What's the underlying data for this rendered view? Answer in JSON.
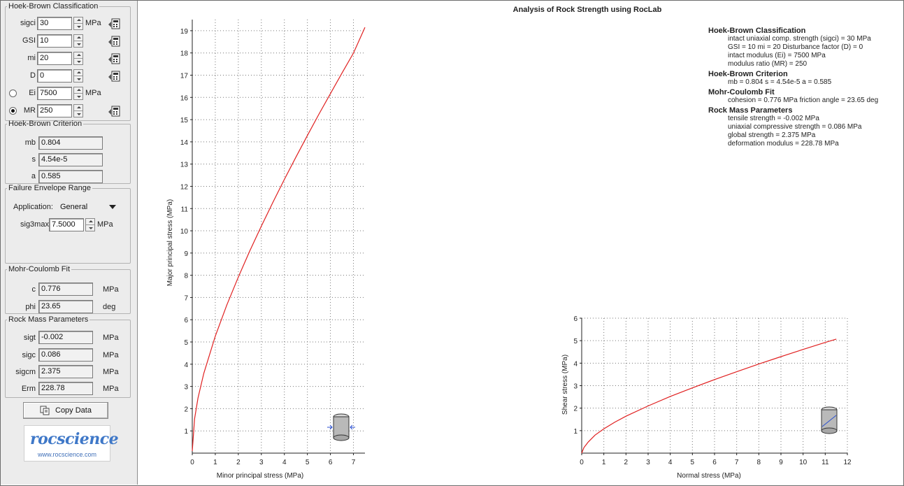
{
  "hb_classification": {
    "legend": "Hoek-Brown Classification",
    "sigci": {
      "label": "sigci",
      "value": "30",
      "unit": "MPa"
    },
    "gsi": {
      "label": "GSI",
      "value": "10"
    },
    "mi": {
      "label": "mi",
      "value": "20"
    },
    "d": {
      "label": "D",
      "value": "0"
    },
    "ei": {
      "label": "Ei",
      "value": "7500",
      "unit": "MPa",
      "selected": false
    },
    "mr": {
      "label": "MR",
      "value": "250",
      "selected": true
    }
  },
  "hb_criterion": {
    "legend": "Hoek-Brown Criterion",
    "mb": {
      "label": "mb",
      "value": "0.804"
    },
    "s": {
      "label": "s",
      "value": "4.54e-5"
    },
    "a": {
      "label": "a",
      "value": "0.585"
    }
  },
  "failure_envelope": {
    "legend": "Failure Envelope Range",
    "application_label": "Application:",
    "application_value": "General",
    "sig3max_label": "sig3max",
    "sig3max_value": "7.5000",
    "sig3max_unit": "MPa"
  },
  "mohr_coulomb": {
    "legend": "Mohr-Coulomb Fit",
    "c": {
      "label": "c",
      "value": "0.776",
      "unit": "MPa"
    },
    "phi": {
      "label": "phi",
      "value": "23.65",
      "unit": "deg"
    }
  },
  "rock_mass": {
    "legend": "Rock Mass Parameters",
    "sigt": {
      "label": "sigt",
      "value": "-0.002",
      "unit": "MPa"
    },
    "sigc": {
      "label": "sigc",
      "value": "0.086",
      "unit": "MPa"
    },
    "sigcm": {
      "label": "sigcm",
      "value": "2.375",
      "unit": "MPa"
    },
    "erm": {
      "label": "Erm",
      "value": "228.78",
      "unit": "MPa"
    }
  },
  "copy_button": "Copy Data",
  "logo": {
    "name": "rocscience",
    "url": "www.rocscience.com"
  },
  "report": {
    "title": "Analysis of Rock Strength using RocLab",
    "sections": [
      {
        "heading": "Hoek-Brown Classification",
        "lines": [
          "intact uniaxial comp. strength (sigci) = 30 MPa",
          "GSI = 10    mi = 20    Disturbance factor (D) = 0",
          "intact modulus (Ei) = 7500 MPa",
          "modulus ratio (MR) = 250"
        ]
      },
      {
        "heading": "Hoek-Brown Criterion",
        "lines": [
          "mb = 0.804    s = 4.54e-5    a = 0.585"
        ]
      },
      {
        "heading": "Mohr-Coulomb Fit",
        "lines": [
          "cohesion = 0.776 MPa    friction angle = 23.65 deg"
        ]
      },
      {
        "heading": "Rock Mass Parameters",
        "lines": [
          "tensile strength = -0.002 MPa",
          "uniaxial compressive strength = 0.086 MPa",
          "global strength = 2.375 MPa",
          "deformation modulus = 228.78 MPa"
        ]
      }
    ]
  },
  "chart_data": [
    {
      "type": "line",
      "xlabel": "Minor principal stress (MPa)",
      "ylabel": "Major principal stress (MPa)",
      "xlim": [
        0,
        7.5
      ],
      "ylim": [
        0,
        19.5
      ],
      "xticks": [
        0,
        1,
        2,
        3,
        4,
        5,
        6,
        7
      ],
      "yticks": [
        1,
        2,
        3,
        4,
        5,
        6,
        7,
        8,
        9,
        10,
        11,
        12,
        13,
        14,
        15,
        16,
        17,
        18,
        19
      ],
      "grid": true,
      "series": [
        {
          "color": "#e02020",
          "x": [
            0,
            0.1,
            0.25,
            0.5,
            1,
            1.5,
            2,
            2.5,
            3,
            3.5,
            4,
            4.5,
            5,
            5.5,
            6,
            6.5,
            7,
            7.5
          ],
          "y": [
            0.09,
            1.54,
            2.48,
            3.59,
            5.26,
            6.66,
            7.92,
            9.1,
            10.21,
            11.28,
            12.31,
            13.31,
            14.29,
            15.24,
            16.17,
            17.09,
            17.99,
            19.15
          ]
        }
      ],
      "inset_icon": "triaxial-sample-icon"
    },
    {
      "type": "line",
      "xlabel": "Normal stress (MPa)",
      "ylabel": "Shear stress (MPa)",
      "xlim": [
        0,
        12
      ],
      "ylim": [
        0,
        6
      ],
      "xticks": [
        0,
        1,
        2,
        3,
        4,
        5,
        6,
        7,
        8,
        9,
        10,
        11,
        12
      ],
      "yticks": [
        1,
        2,
        3,
        4,
        5,
        6
      ],
      "grid": true,
      "series": [
        {
          "color": "#e02020",
          "x": [
            0,
            0.1,
            0.3,
            0.6,
            1,
            1.5,
            2,
            3,
            4,
            5,
            6,
            7,
            8,
            9,
            10,
            11,
            11.5
          ],
          "y": [
            0,
            0.25,
            0.5,
            0.8,
            1.08,
            1.38,
            1.64,
            2.1,
            2.52,
            2.9,
            3.27,
            3.62,
            3.96,
            4.29,
            4.61,
            4.92,
            5.07
          ]
        }
      ],
      "inset_icon": "shear-sample-icon"
    }
  ]
}
